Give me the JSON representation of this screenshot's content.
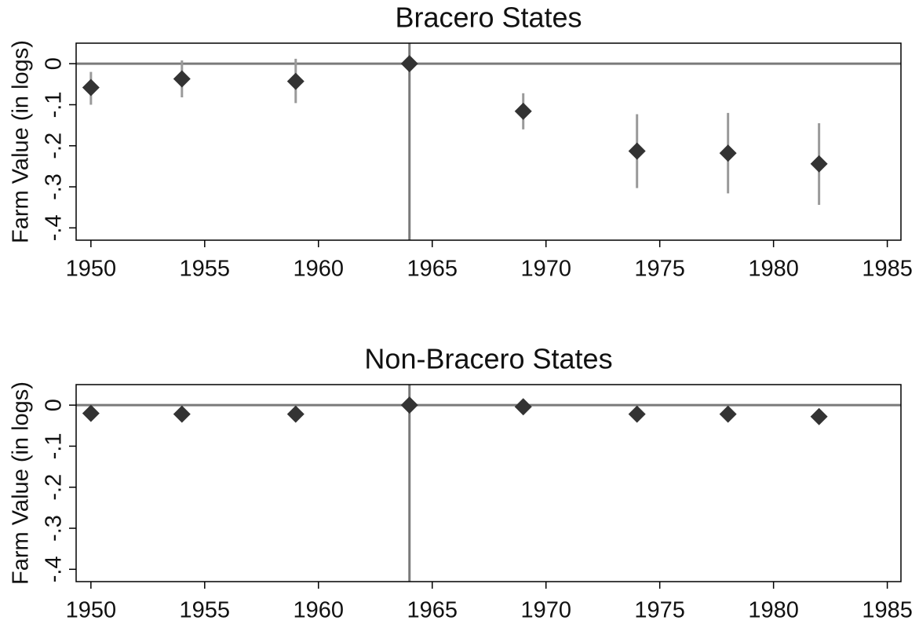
{
  "chart_data": [
    {
      "type": "scatter",
      "title": "Bracero States",
      "y_label": "Farm Value (in logs)",
      "x": [
        1950,
        1954,
        1959,
        1964,
        1969,
        1974,
        1978,
        1982
      ],
      "series": [
        {
          "color": "#333333",
          "error_color": "#9a9a9a",
          "values": [
            -0.058,
            -0.037,
            -0.043,
            0,
            -0.116,
            -0.213,
            -0.218,
            -0.244
          ],
          "lower": [
            -0.1,
            -0.082,
            -0.096,
            0,
            -0.16,
            -0.303,
            -0.316,
            -0.344
          ],
          "upper": [
            -0.02,
            0.008,
            0.012,
            0,
            -0.072,
            -0.123,
            -0.12,
            -0.145
          ]
        }
      ],
      "xlim": [
        1949.35,
        1985.6
      ],
      "ylim": [
        -0.43,
        0.05
      ],
      "xticks": [
        1950,
        1955,
        1960,
        1965,
        1970,
        1975,
        1980,
        1985
      ],
      "yticks": [
        0,
        {
          "value": -0.1,
          "label": "-.1"
        },
        {
          "value": -0.2,
          "label": "-.2"
        },
        {
          "value": -0.3,
          "label": "-.3"
        },
        {
          "value": -0.4,
          "label": "-.4"
        }
      ],
      "reference_lines": {
        "x": 1964,
        "y": 0,
        "color": "#7a7a7a"
      }
    },
    {
      "type": "scatter",
      "title": "Non-Bracero States",
      "y_label": "Farm Value (in logs)",
      "x": [
        1950,
        1954,
        1959,
        1964,
        1969,
        1974,
        1978,
        1982
      ],
      "series": [
        {
          "color": "#333333",
          "values": [
            -0.02,
            -0.022,
            -0.022,
            0,
            -0.004,
            -0.022,
            -0.022,
            -0.028
          ]
        }
      ],
      "xlim": [
        1949.35,
        1985.6
      ],
      "ylim": [
        -0.43,
        0.05
      ],
      "xticks": [
        1950,
        1955,
        1960,
        1965,
        1970,
        1975,
        1980,
        1985
      ],
      "yticks": [
        0,
        {
          "value": -0.1,
          "label": "-.1"
        },
        {
          "value": -0.2,
          "label": "-.2"
        },
        {
          "value": -0.3,
          "label": "-.3"
        },
        {
          "value": -0.4,
          "label": "-.4"
        }
      ],
      "reference_lines": {
        "x": 1964,
        "y": 0,
        "color": "#7a7a7a"
      }
    }
  ]
}
